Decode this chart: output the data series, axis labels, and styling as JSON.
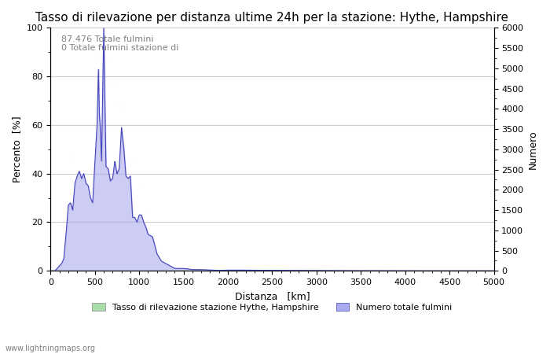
{
  "title": "Tasso di rilevazione per distanza ultime 24h per la stazione: Hythe, Hampshire",
  "xlabel": "Distanza   [km]",
  "ylabel_left": "Percento  [%]",
  "ylabel_right": "Numero",
  "annotation_line1": "87.476 Totale fulmini",
  "annotation_line2": "0 Totale fulmini stazione di",
  "legend_label1": "Tasso di rilevazione stazione Hythe, Hampshire",
  "legend_label2": "Numero totale fulmini",
  "watermark": "www.lightningmaps.org",
  "xlim": [
    0,
    5000
  ],
  "ylim_left": [
    0,
    100
  ],
  "ylim_right": [
    0,
    6000
  ],
  "xticks": [
    0,
    500,
    1000,
    1500,
    2000,
    2500,
    3000,
    3500,
    4000,
    4500,
    5000
  ],
  "yticks_left": [
    0,
    20,
    40,
    60,
    80,
    100
  ],
  "yticks_right": [
    0,
    500,
    1000,
    1500,
    2000,
    2500,
    3000,
    3500,
    4000,
    4500,
    5000,
    5500,
    6000
  ],
  "fill_color_blue": "#aaaaee",
  "fill_color_green": "#aaddaa",
  "line_color": "#4444bb",
  "bg_color": "#ffffff",
  "grid_color": "#cccccc",
  "title_fontsize": 11,
  "axis_label_fontsize": 9,
  "tick_fontsize": 8,
  "annotation_fontsize": 8,
  "percent_data_x": [
    0,
    50,
    75,
    100,
    125,
    150,
    175,
    200,
    225,
    250,
    275,
    300,
    325,
    350,
    375,
    400,
    425,
    450,
    475,
    500,
    525,
    540,
    550,
    560,
    575,
    600,
    625,
    650,
    675,
    700,
    725,
    750,
    775,
    800,
    825,
    850,
    875,
    900,
    925,
    950,
    975,
    1000,
    1025,
    1050,
    1075,
    1100,
    1150,
    1200,
    1250,
    1300,
    1350,
    1400,
    1500,
    1600,
    1700,
    1800,
    1900,
    2000,
    2500,
    3000,
    3500,
    4000,
    5000
  ],
  "percent_data_y": [
    0,
    0,
    1,
    2,
    3,
    5,
    15,
    27,
    28,
    25,
    36,
    39,
    41,
    38,
    40,
    36,
    35,
    30,
    28,
    44,
    60,
    83,
    65,
    60,
    45,
    100,
    43,
    42,
    37,
    38,
    45,
    40,
    42,
    59,
    51,
    39,
    38,
    39,
    22,
    22,
    20,
    23,
    23,
    20,
    18,
    15,
    14,
    7,
    4,
    3,
    2,
    1,
    1,
    0.5,
    0.5,
    0.3,
    0.2,
    0.3,
    0.2,
    0.1,
    0.05,
    0.02,
    0
  ]
}
